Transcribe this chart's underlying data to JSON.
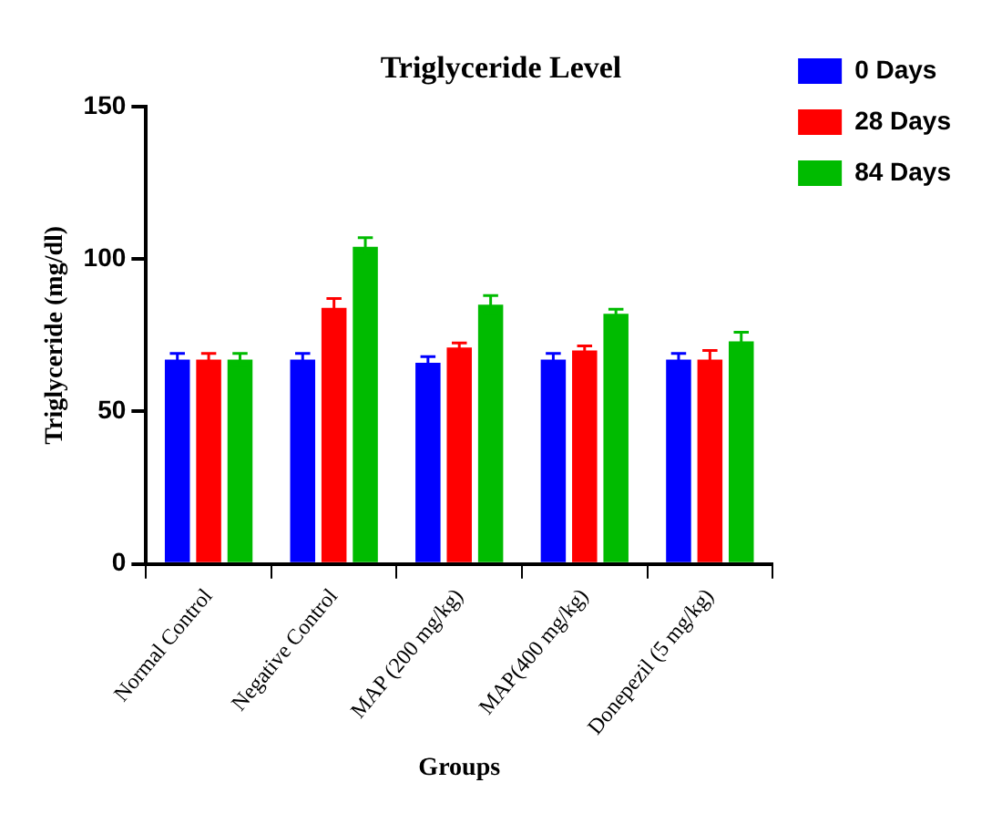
{
  "chart_data": {
    "type": "bar",
    "title": "Triglyceride Level",
    "xlabel": "Groups",
    "ylabel": "Triglyceride (mg/dl)",
    "categories": [
      "Normal Control",
      "Negative Control",
      "MAP (200 mg/kg)",
      "MAP(400 mg/kg)",
      "Donepezil (5 mg/kg)"
    ],
    "series": [
      {
        "name": "0 Days",
        "color": "#0000ff",
        "values": [
          67,
          67,
          66,
          67,
          67
        ],
        "errors": [
          2,
          2,
          2,
          2,
          2
        ]
      },
      {
        "name": "28 Days",
        "color": "#ff0000",
        "values": [
          67,
          84,
          71,
          70,
          67
        ],
        "errors": [
          2,
          3,
          1.5,
          1.5,
          3
        ]
      },
      {
        "name": "84 Days",
        "color": "#00bb00",
        "values": [
          67,
          104,
          85,
          82,
          73
        ],
        "errors": [
          2,
          3,
          3,
          1.5,
          3
        ]
      }
    ],
    "ylim": [
      0,
      150
    ],
    "yticks": [
      0,
      50,
      100,
      150
    ],
    "grid": false,
    "legend": "right"
  }
}
